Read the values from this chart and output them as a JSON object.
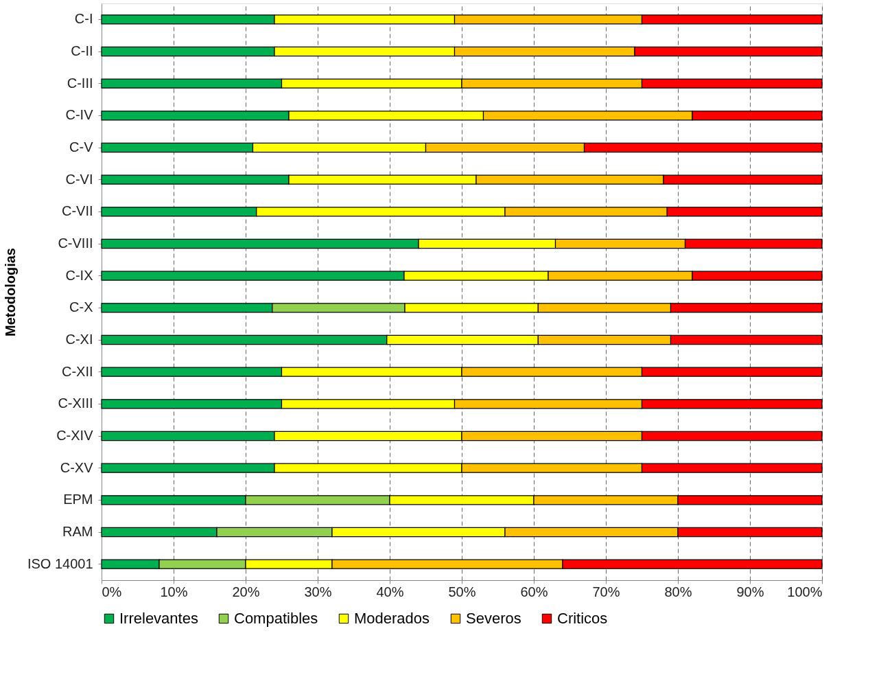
{
  "chart_data": {
    "type": "bar",
    "orientation": "horizontal",
    "stacked": true,
    "ylabel": "Metodologias",
    "categories": [
      "C-I",
      "C-II",
      "C-III",
      "C-IV",
      "C-V",
      "C-VI",
      "C-VII",
      "C-VIII",
      "C-IX",
      "C-X",
      "C-XI",
      "C-XII",
      "C-XIII",
      "C-XIV",
      "C-XV",
      "EPM",
      "RAM",
      "ISO 14001"
    ],
    "series": [
      {
        "name": "Irrelevantes",
        "color": "#00b050",
        "values": [
          24,
          24,
          25,
          26,
          21,
          26,
          21.5,
          44,
          42,
          23.7,
          39.6,
          25,
          25,
          24,
          24,
          20,
          16,
          8
        ]
      },
      {
        "name": "Compatibles",
        "color": "#92d050",
        "values": [
          null,
          null,
          null,
          null,
          null,
          null,
          null,
          null,
          null,
          18.4,
          null,
          null,
          null,
          null,
          null,
          20,
          16,
          12
        ]
      },
      {
        "name": "Moderados",
        "color": "#ffff00",
        "values": [
          25,
          25,
          25,
          27,
          24,
          26,
          34.5,
          19,
          20,
          18.5,
          21,
          25,
          24,
          26,
          26,
          20,
          24,
          12
        ]
      },
      {
        "name": "Severos",
        "color": "#ffc000",
        "values": [
          26,
          25,
          25,
          29,
          22,
          26,
          22.5,
          18,
          20,
          18.4,
          18.4,
          25,
          26,
          25,
          25,
          20,
          24,
          32
        ]
      },
      {
        "name": "Criticos",
        "color": "#ff0000",
        "values": [
          25,
          26,
          25,
          18,
          33,
          22,
          21.5,
          19,
          18,
          21,
          21,
          25,
          25,
          25,
          25,
          20,
          20,
          36
        ]
      }
    ],
    "xlim": [
      0,
      100
    ],
    "xticks": [
      {
        "value": 0,
        "label": "0%"
      },
      {
        "value": 10,
        "label": "10%"
      },
      {
        "value": 20,
        "label": "20%"
      },
      {
        "value": 30,
        "label": "30%"
      },
      {
        "value": 40,
        "label": "40%"
      },
      {
        "value": 50,
        "label": "50%"
      },
      {
        "value": 60,
        "label": "60%"
      },
      {
        "value": 70,
        "label": "70%"
      },
      {
        "value": 80,
        "label": "80%"
      },
      {
        "value": 90,
        "label": "90%"
      },
      {
        "value": 100,
        "label": "100%"
      }
    ],
    "grid": "x",
    "legend": "bottom"
  }
}
